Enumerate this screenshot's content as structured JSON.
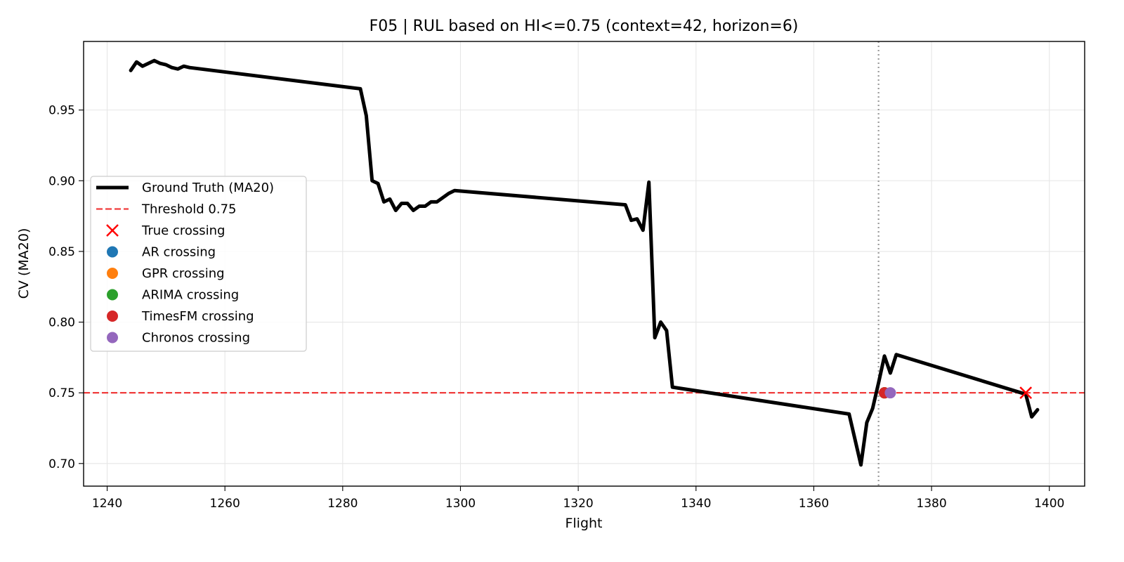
{
  "chart_data": {
    "type": "line",
    "title": "F05 | RUL based on HI<=0.75 (context=42, horizon=6)",
    "xlabel": "Flight",
    "ylabel": "CV (MA20)",
    "xlim": [
      1236,
      1406
    ],
    "ylim": [
      0.684,
      0.9985
    ],
    "xticks": [
      1240,
      1260,
      1280,
      1300,
      1320,
      1340,
      1360,
      1380,
      1400
    ],
    "yticks": [
      0.7,
      0.75,
      0.8,
      0.85,
      0.9,
      0.95
    ],
    "grid": true,
    "legend_position": "center-left",
    "series": [
      {
        "name": "Ground Truth (MA20)",
        "color": "#000000",
        "x": [
          1244,
          1245,
          1246,
          1247,
          1248,
          1249,
          1250,
          1251,
          1252,
          1253,
          1254,
          1283,
          1284,
          1285,
          1286,
          1287,
          1288,
          1289,
          1290,
          1291,
          1292,
          1293,
          1294,
          1295,
          1296,
          1297,
          1298,
          1299,
          1328,
          1329,
          1330,
          1331,
          1332,
          1333,
          1334,
          1335,
          1336,
          1366,
          1367,
          1368,
          1369,
          1370,
          1371,
          1372,
          1373,
          1374,
          1396,
          1397,
          1398
        ],
        "y": [
          0.978,
          0.984,
          0.981,
          0.983,
          0.985,
          0.983,
          0.982,
          0.98,
          0.979,
          0.981,
          0.98,
          0.965,
          0.946,
          0.9,
          0.898,
          0.885,
          0.887,
          0.879,
          0.884,
          0.884,
          0.879,
          0.882,
          0.882,
          0.885,
          0.885,
          0.888,
          0.891,
          0.893,
          0.883,
          0.872,
          0.873,
          0.865,
          0.899,
          0.789,
          0.8,
          0.794,
          0.754,
          0.735,
          0.717,
          0.699,
          0.729,
          0.739,
          0.757,
          0.776,
          0.764,
          0.777,
          0.749,
          0.733,
          0.738
        ]
      }
    ],
    "threshold": {
      "name": "Threshold 0.75",
      "value": 0.75,
      "color": "#f03c3c"
    },
    "forecast_start": {
      "x": 1371,
      "color": "#999999"
    },
    "markers": [
      {
        "name": "True crossing",
        "x": 1396,
        "y": 0.75,
        "color": "#ff0000",
        "shape": "x"
      },
      {
        "name": "AR crossing",
        "x": 1372,
        "y": 0.75,
        "color": "#1f77b4",
        "shape": "circle"
      },
      {
        "name": "GPR crossing",
        "x": 1372,
        "y": 0.75,
        "color": "#ff7f0e",
        "shape": "circle"
      },
      {
        "name": "ARIMA crossing",
        "x": 1372,
        "y": 0.75,
        "color": "#2ca02c",
        "shape": "circle"
      },
      {
        "name": "TimesFM crossing",
        "x": 1372,
        "y": 0.75,
        "color": "#d62728",
        "shape": "circle"
      },
      {
        "name": "Chronos crossing",
        "x": 1373,
        "y": 0.75,
        "color": "#9467bd",
        "shape": "circle"
      }
    ]
  }
}
